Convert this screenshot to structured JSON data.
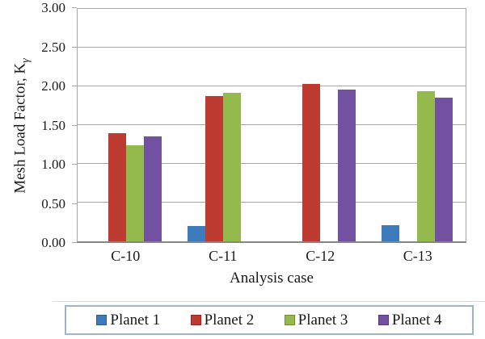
{
  "chart_data": {
    "type": "bar",
    "title": "",
    "xlabel": "Analysis case",
    "ylabel": "Mesh Load Factor, K",
    "ylabel_sub": "γ",
    "categories": [
      "C-10",
      "C-11",
      "C-12",
      "C-13"
    ],
    "series": [
      {
        "name": "Planet 1",
        "color": "#3E7BBD",
        "values": [
          0,
          0.2,
          0,
          0.21
        ]
      },
      {
        "name": "Planet 2",
        "color": "#BE3B31",
        "values": [
          1.4,
          1.88,
          2.03,
          0
        ]
      },
      {
        "name": "Planet 3",
        "color": "#94BA4D",
        "values": [
          1.24,
          1.92,
          0,
          1.94
        ]
      },
      {
        "name": "Planet 4",
        "color": "#7251A1",
        "values": [
          1.35,
          0,
          1.96,
          1.85
        ]
      }
    ],
    "ylim": [
      0,
      3
    ],
    "yticks": [
      0.0,
      0.5,
      1.0,
      1.5,
      2.0,
      2.5,
      3.0
    ],
    "ytick_labels": [
      "0.00",
      "0.50",
      "1.00",
      "1.50",
      "2.00",
      "2.50",
      "3.00"
    ],
    "grid": true,
    "legend_position": "bottom"
  },
  "colors": {
    "gridline": "#A6A6A6",
    "axis": "#858585",
    "legend_border": "#A0B4C8",
    "text": "#1A1A1A"
  }
}
